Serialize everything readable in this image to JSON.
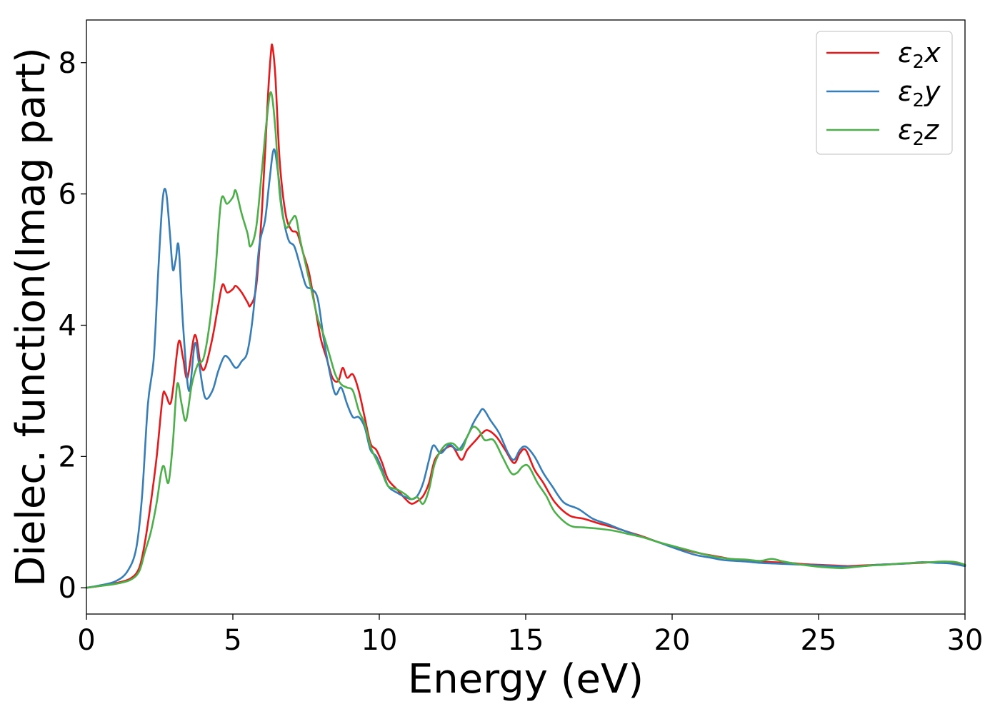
{
  "chart_data": {
    "type": "line",
    "xlabel": "Energy (eV)",
    "ylabel": "Dielec. function(Imag part)",
    "xlim": [
      0,
      30
    ],
    "ylim": [
      -0.4,
      8.65
    ],
    "xticks": [
      0,
      5,
      10,
      15,
      20,
      25,
      30
    ],
    "yticks": [
      0,
      2,
      4,
      6,
      8
    ],
    "grid": false,
    "legend_position": "top-right",
    "series": [
      {
        "name": "ε2x",
        "legend": {
          "symbol": "ε",
          "sub": "2",
          "var": "x"
        },
        "color": "#e41a1c",
        "points": [
          [
            0,
            0
          ],
          [
            0.5,
            0.03
          ],
          [
            1.0,
            0.07
          ],
          [
            1.5,
            0.14
          ],
          [
            1.8,
            0.3
          ],
          [
            2.0,
            0.7
          ],
          [
            2.2,
            1.3
          ],
          [
            2.4,
            2.0
          ],
          [
            2.6,
            2.9
          ],
          [
            2.7,
            2.95
          ],
          [
            2.85,
            2.8
          ],
          [
            2.95,
            3.0
          ],
          [
            3.15,
            3.75
          ],
          [
            3.3,
            3.5
          ],
          [
            3.45,
            3.2
          ],
          [
            3.7,
            3.85
          ],
          [
            3.9,
            3.4
          ],
          [
            4.05,
            3.35
          ],
          [
            4.3,
            3.8
          ],
          [
            4.5,
            4.3
          ],
          [
            4.65,
            4.62
          ],
          [
            4.8,
            4.5
          ],
          [
            5.0,
            4.55
          ],
          [
            5.1,
            4.6
          ],
          [
            5.3,
            4.5
          ],
          [
            5.5,
            4.35
          ],
          [
            5.6,
            4.3
          ],
          [
            5.8,
            4.6
          ],
          [
            6.0,
            5.8
          ],
          [
            6.2,
            7.5
          ],
          [
            6.3,
            8.15
          ],
          [
            6.35,
            8.25
          ],
          [
            6.45,
            7.8
          ],
          [
            6.6,
            6.5
          ],
          [
            6.8,
            5.7
          ],
          [
            7.0,
            5.45
          ],
          [
            7.2,
            5.4
          ],
          [
            7.4,
            5.1
          ],
          [
            7.6,
            4.8
          ],
          [
            7.8,
            4.3
          ],
          [
            8.0,
            3.8
          ],
          [
            8.2,
            3.5
          ],
          [
            8.4,
            3.2
          ],
          [
            8.6,
            3.15
          ],
          [
            8.75,
            3.35
          ],
          [
            8.9,
            3.2
          ],
          [
            9.1,
            3.25
          ],
          [
            9.3,
            3.0
          ],
          [
            9.5,
            2.6
          ],
          [
            9.7,
            2.2
          ],
          [
            9.9,
            2.1
          ],
          [
            10.1,
            1.9
          ],
          [
            10.3,
            1.65
          ],
          [
            10.6,
            1.5
          ],
          [
            10.9,
            1.35
          ],
          [
            11.1,
            1.28
          ],
          [
            11.3,
            1.32
          ],
          [
            11.5,
            1.4
          ],
          [
            11.7,
            1.6
          ],
          [
            11.9,
            1.95
          ],
          [
            12.2,
            2.1
          ],
          [
            12.5,
            2.15
          ],
          [
            12.8,
            1.95
          ],
          [
            13.0,
            2.1
          ],
          [
            13.3,
            2.25
          ],
          [
            13.5,
            2.35
          ],
          [
            13.7,
            2.4
          ],
          [
            14.0,
            2.3
          ],
          [
            14.3,
            2.1
          ],
          [
            14.6,
            1.9
          ],
          [
            14.8,
            2.05
          ],
          [
            15.0,
            2.1
          ],
          [
            15.3,
            1.8
          ],
          [
            15.6,
            1.6
          ],
          [
            16.0,
            1.3
          ],
          [
            16.5,
            1.1
          ],
          [
            17.0,
            1.05
          ],
          [
            17.5,
            0.98
          ],
          [
            18.0,
            0.92
          ],
          [
            18.5,
            0.85
          ],
          [
            19.0,
            0.78
          ],
          [
            19.5,
            0.7
          ],
          [
            20.0,
            0.63
          ],
          [
            20.5,
            0.57
          ],
          [
            21.0,
            0.52
          ],
          [
            21.5,
            0.48
          ],
          [
            22.0,
            0.44
          ],
          [
            22.5,
            0.42
          ],
          [
            23.0,
            0.4
          ],
          [
            23.5,
            0.39
          ],
          [
            24.0,
            0.38
          ],
          [
            24.5,
            0.36
          ],
          [
            25.0,
            0.35
          ],
          [
            25.5,
            0.34
          ],
          [
            26.0,
            0.33
          ],
          [
            26.5,
            0.34
          ],
          [
            27.0,
            0.35
          ],
          [
            27.5,
            0.36
          ],
          [
            28.0,
            0.37
          ],
          [
            28.5,
            0.38
          ],
          [
            29.0,
            0.39
          ],
          [
            29.5,
            0.38
          ],
          [
            30.0,
            0.34
          ]
        ]
      },
      {
        "name": "ε2y",
        "legend": {
          "symbol": "ε",
          "sub": "2",
          "var": "y"
        },
        "color": "#377eb8",
        "points": [
          [
            0,
            0
          ],
          [
            0.5,
            0.04
          ],
          [
            1.0,
            0.1
          ],
          [
            1.4,
            0.25
          ],
          [
            1.7,
            0.6
          ],
          [
            1.9,
            1.4
          ],
          [
            2.1,
            2.8
          ],
          [
            2.3,
            3.5
          ],
          [
            2.45,
            4.8
          ],
          [
            2.6,
            5.9
          ],
          [
            2.72,
            6.03
          ],
          [
            2.85,
            5.4
          ],
          [
            2.95,
            4.85
          ],
          [
            3.05,
            5.0
          ],
          [
            3.15,
            5.2
          ],
          [
            3.3,
            4.0
          ],
          [
            3.5,
            3.0
          ],
          [
            3.7,
            3.72
          ],
          [
            3.85,
            3.4
          ],
          [
            4.05,
            2.9
          ],
          [
            4.3,
            3.0
          ],
          [
            4.5,
            3.3
          ],
          [
            4.7,
            3.52
          ],
          [
            4.85,
            3.5
          ],
          [
            5.1,
            3.35
          ],
          [
            5.3,
            3.45
          ],
          [
            5.5,
            3.6
          ],
          [
            5.7,
            4.2
          ],
          [
            5.9,
            5.2
          ],
          [
            6.1,
            5.6
          ],
          [
            6.25,
            6.2
          ],
          [
            6.4,
            6.68
          ],
          [
            6.55,
            6.3
          ],
          [
            6.7,
            5.7
          ],
          [
            6.9,
            5.3
          ],
          [
            7.1,
            5.2
          ],
          [
            7.3,
            4.9
          ],
          [
            7.5,
            4.6
          ],
          [
            7.7,
            4.55
          ],
          [
            7.9,
            4.4
          ],
          [
            8.1,
            3.8
          ],
          [
            8.3,
            3.3
          ],
          [
            8.5,
            2.95
          ],
          [
            8.7,
            3.05
          ],
          [
            8.9,
            2.8
          ],
          [
            9.1,
            2.6
          ],
          [
            9.3,
            2.6
          ],
          [
            9.5,
            2.45
          ],
          [
            9.7,
            2.1
          ],
          [
            9.9,
            2.0
          ],
          [
            10.1,
            1.8
          ],
          [
            10.3,
            1.55
          ],
          [
            10.6,
            1.45
          ],
          [
            10.9,
            1.38
          ],
          [
            11.1,
            1.35
          ],
          [
            11.3,
            1.4
          ],
          [
            11.5,
            1.6
          ],
          [
            11.7,
            1.95
          ],
          [
            11.85,
            2.17
          ],
          [
            12.1,
            2.05
          ],
          [
            12.4,
            2.18
          ],
          [
            12.7,
            2.1
          ],
          [
            13.0,
            2.3
          ],
          [
            13.2,
            2.5
          ],
          [
            13.4,
            2.65
          ],
          [
            13.55,
            2.72
          ],
          [
            13.8,
            2.55
          ],
          [
            14.1,
            2.35
          ],
          [
            14.4,
            2.05
          ],
          [
            14.6,
            1.95
          ],
          [
            14.8,
            2.1
          ],
          [
            15.0,
            2.15
          ],
          [
            15.3,
            2.0
          ],
          [
            15.6,
            1.75
          ],
          [
            15.9,
            1.55
          ],
          [
            16.3,
            1.3
          ],
          [
            16.8,
            1.2
          ],
          [
            17.3,
            1.05
          ],
          [
            17.8,
            0.97
          ],
          [
            18.3,
            0.88
          ],
          [
            18.8,
            0.8
          ],
          [
            19.3,
            0.73
          ],
          [
            19.8,
            0.65
          ],
          [
            20.3,
            0.57
          ],
          [
            20.8,
            0.5
          ],
          [
            21.3,
            0.46
          ],
          [
            21.8,
            0.42
          ],
          [
            22.5,
            0.4
          ],
          [
            23.0,
            0.38
          ],
          [
            23.5,
            0.37
          ],
          [
            24.0,
            0.36
          ],
          [
            24.5,
            0.35
          ],
          [
            25.0,
            0.34
          ],
          [
            25.5,
            0.33
          ],
          [
            26.0,
            0.32
          ],
          [
            26.5,
            0.33
          ],
          [
            27.0,
            0.35
          ],
          [
            27.5,
            0.36
          ],
          [
            28.0,
            0.37
          ],
          [
            28.5,
            0.39
          ],
          [
            29.0,
            0.38
          ],
          [
            29.5,
            0.37
          ],
          [
            30.0,
            0.33
          ]
        ]
      },
      {
        "name": "ε2z",
        "legend": {
          "symbol": "ε",
          "sub": "2",
          "var": "z"
        },
        "color": "#4daf4a",
        "points": [
          [
            0,
            0
          ],
          [
            0.5,
            0.03
          ],
          [
            1.0,
            0.06
          ],
          [
            1.5,
            0.12
          ],
          [
            1.8,
            0.25
          ],
          [
            2.0,
            0.55
          ],
          [
            2.2,
            0.85
          ],
          [
            2.4,
            1.3
          ],
          [
            2.55,
            1.75
          ],
          [
            2.65,
            1.85
          ],
          [
            2.8,
            1.6
          ],
          [
            2.95,
            2.2
          ],
          [
            3.1,
            3.1
          ],
          [
            3.25,
            2.8
          ],
          [
            3.4,
            2.55
          ],
          [
            3.6,
            3.1
          ],
          [
            3.8,
            3.4
          ],
          [
            4.0,
            3.5
          ],
          [
            4.2,
            4.0
          ],
          [
            4.4,
            4.8
          ],
          [
            4.6,
            5.9
          ],
          [
            4.8,
            5.85
          ],
          [
            5.0,
            5.95
          ],
          [
            5.1,
            6.05
          ],
          [
            5.3,
            5.7
          ],
          [
            5.5,
            5.4
          ],
          [
            5.6,
            5.2
          ],
          [
            5.8,
            5.5
          ],
          [
            6.0,
            6.4
          ],
          [
            6.15,
            7.1
          ],
          [
            6.3,
            7.55
          ],
          [
            6.45,
            7.0
          ],
          [
            6.6,
            6.0
          ],
          [
            6.8,
            5.5
          ],
          [
            7.0,
            5.6
          ],
          [
            7.15,
            5.65
          ],
          [
            7.3,
            5.3
          ],
          [
            7.5,
            4.9
          ],
          [
            7.7,
            4.5
          ],
          [
            7.9,
            4.1
          ],
          [
            8.1,
            3.85
          ],
          [
            8.3,
            3.55
          ],
          [
            8.5,
            3.25
          ],
          [
            8.7,
            3.1
          ],
          [
            8.9,
            3.05
          ],
          [
            9.1,
            3.0
          ],
          [
            9.3,
            2.7
          ],
          [
            9.5,
            2.5
          ],
          [
            9.7,
            2.15
          ],
          [
            9.9,
            1.95
          ],
          [
            10.1,
            1.75
          ],
          [
            10.3,
            1.55
          ],
          [
            10.6,
            1.5
          ],
          [
            10.9,
            1.42
          ],
          [
            11.1,
            1.35
          ],
          [
            11.3,
            1.38
          ],
          [
            11.5,
            1.28
          ],
          [
            11.7,
            1.5
          ],
          [
            11.9,
            1.9
          ],
          [
            12.2,
            2.15
          ],
          [
            12.5,
            2.2
          ],
          [
            12.8,
            2.1
          ],
          [
            13.0,
            2.3
          ],
          [
            13.2,
            2.45
          ],
          [
            13.4,
            2.4
          ],
          [
            13.6,
            2.25
          ],
          [
            13.9,
            2.25
          ],
          [
            14.2,
            2.0
          ],
          [
            14.5,
            1.75
          ],
          [
            14.7,
            1.75
          ],
          [
            14.9,
            1.85
          ],
          [
            15.1,
            1.85
          ],
          [
            15.4,
            1.6
          ],
          [
            15.7,
            1.4
          ],
          [
            16.0,
            1.15
          ],
          [
            16.5,
            0.95
          ],
          [
            17.0,
            0.92
          ],
          [
            17.5,
            0.9
          ],
          [
            18.0,
            0.87
          ],
          [
            18.5,
            0.82
          ],
          [
            19.0,
            0.77
          ],
          [
            19.5,
            0.7
          ],
          [
            20.0,
            0.64
          ],
          [
            20.5,
            0.58
          ],
          [
            21.0,
            0.52
          ],
          [
            21.5,
            0.47
          ],
          [
            22.0,
            0.44
          ],
          [
            22.5,
            0.43
          ],
          [
            23.0,
            0.41
          ],
          [
            23.4,
            0.44
          ],
          [
            23.8,
            0.4
          ],
          [
            24.3,
            0.36
          ],
          [
            24.8,
            0.33
          ],
          [
            25.3,
            0.31
          ],
          [
            25.8,
            0.3
          ],
          [
            26.3,
            0.32
          ],
          [
            26.8,
            0.34
          ],
          [
            27.3,
            0.35
          ],
          [
            27.8,
            0.37
          ],
          [
            28.3,
            0.38
          ],
          [
            28.8,
            0.39
          ],
          [
            29.3,
            0.4
          ],
          [
            29.7,
            0.39
          ],
          [
            30.0,
            0.35
          ]
        ]
      }
    ]
  }
}
